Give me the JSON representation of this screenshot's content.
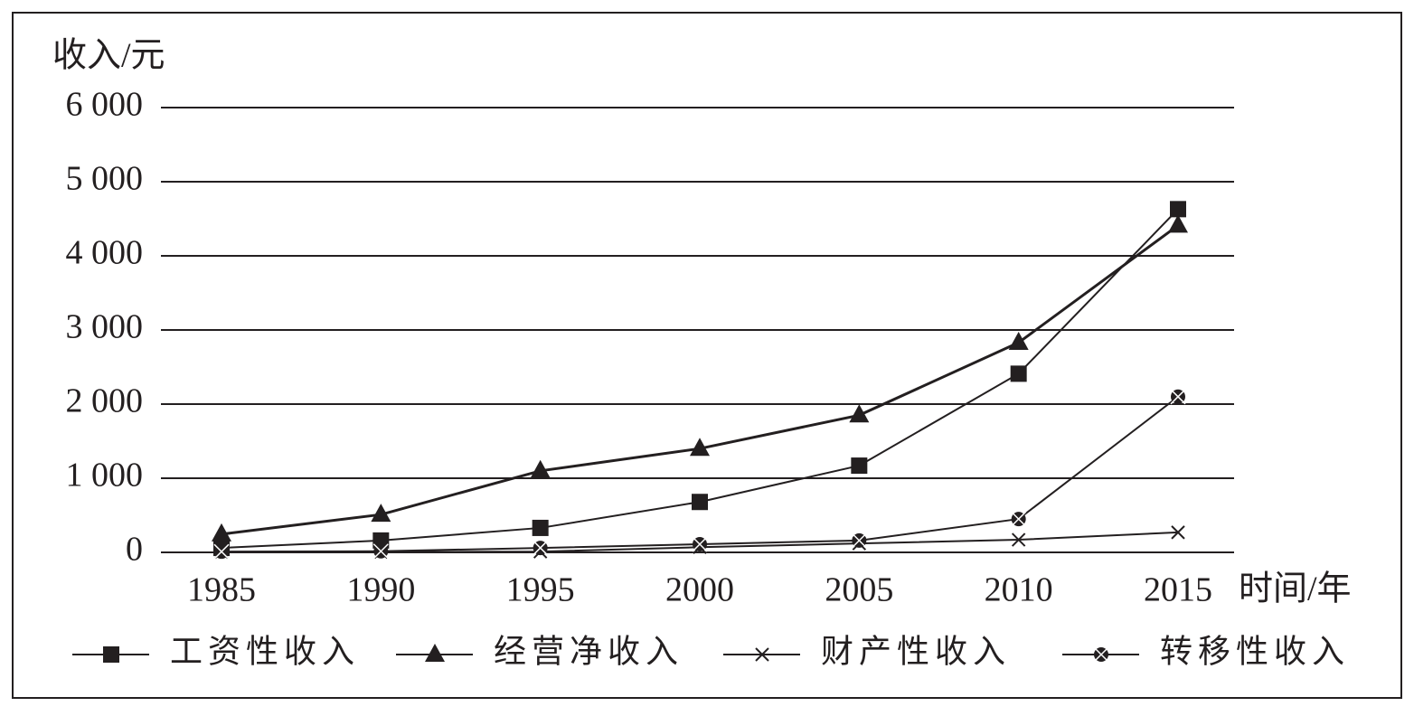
{
  "chart_data": {
    "type": "line",
    "y_label": "收入/元",
    "x_label": "时间/年",
    "categories": [
      "1985",
      "1990",
      "1995",
      "2000",
      "2005",
      "2010",
      "2015"
    ],
    "series": [
      {
        "name": "工资性收入",
        "color": "#231f20",
        "marker": "square",
        "values": [
          60,
          160,
          330,
          680,
          1170,
          2410,
          4630
        ]
      },
      {
        "name": "经营净收入",
        "color": "#231f20",
        "marker": "triangle",
        "values": [
          245,
          510,
          1100,
          1400,
          1850,
          2830,
          4410
        ]
      },
      {
        "name": "财产性收入",
        "color": "#231f20",
        "marker": "cross",
        "values": [
          5,
          5,
          10,
          70,
          120,
          170,
          270
        ]
      },
      {
        "name": "转移性收入",
        "color": "#231f20",
        "marker": "circle-cross",
        "values": [
          10,
          15,
          60,
          110,
          160,
          450,
          2100
        ]
      }
    ],
    "ylim": [
      0,
      6000
    ],
    "yticks": [
      0,
      {
        "value": 1000,
        "label": "1 000"
      },
      {
        "value": 2000,
        "label": "2 000"
      },
      {
        "value": 3000,
        "label": "3 000"
      },
      {
        "value": 4000,
        "label": "4 000"
      },
      {
        "value": 5000,
        "label": "5 000"
      },
      {
        "value": 6000,
        "label": "6 000"
      }
    ],
    "grid": true,
    "legend": "bottom"
  }
}
